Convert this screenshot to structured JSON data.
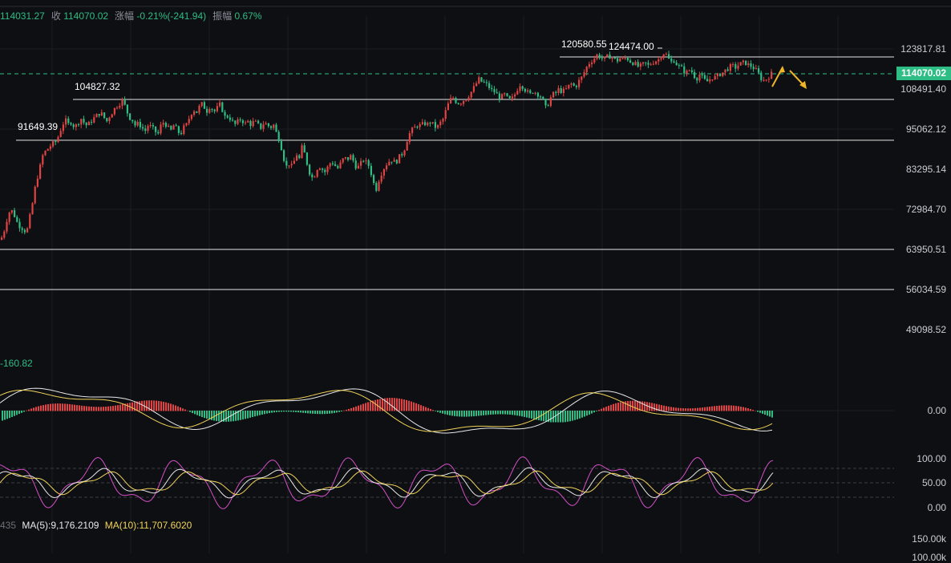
{
  "header": {
    "open_value": "114031.27",
    "close_label": "收",
    "close_value": "114070.02",
    "change_label": "涨幅",
    "change_value": "-0.21%(-241.94)",
    "amplitude_label": "振幅",
    "amplitude_value": "0.67%"
  },
  "price_axis": {
    "ticks": [
      "123817.81",
      "108491.40",
      "95062.12",
      "83295.14",
      "72984.70",
      "63950.51",
      "56034.59",
      "49098.52"
    ],
    "current_price": "114070.02"
  },
  "level_labels": {
    "l1": "120580.55",
    "l2": "124474.00",
    "l3": "104827.32",
    "l4": "91649.39"
  },
  "macd": {
    "label": "-160.82",
    "zero_tick": "0.00"
  },
  "kdj": {
    "ticks": [
      "100.00",
      "50.00",
      "0.00"
    ]
  },
  "volume": {
    "prefix": "435",
    "ma5_label": "MA(5):9,176.2109",
    "ma10_label": "MA(10):11,707.6020",
    "tick": "150.00k",
    "tick2": "100.00k"
  },
  "colors": {
    "up": "#e04343",
    "down": "#2ebd85",
    "macd_dif": "#e8e8e8",
    "macd_dea": "#f0d35a",
    "kdj_k": "#e8e8e8",
    "kdj_d": "#f0d35a",
    "kdj_j": "#d44fc9",
    "arrow": "#f0b429"
  },
  "chart_data": {
    "type": "candlestick",
    "price_ticks": [
      123817.81,
      108491.4,
      95062.12,
      83295.14,
      72984.7,
      63950.51,
      56034.59,
      49098.52
    ],
    "horizontal_levels": [
      120580.55,
      104827.32,
      91649.39,
      63950.51,
      56034.59
    ],
    "current_price": 114070.02,
    "close_path": [
      [
        0,
        66000
      ],
      [
        4,
        68000
      ],
      [
        8,
        71000
      ],
      [
        12,
        73000
      ],
      [
        16,
        72000
      ],
      [
        20,
        70000
      ],
      [
        24,
        69000
      ],
      [
        28,
        68500
      ],
      [
        32,
        67500
      ],
      [
        36,
        71000
      ],
      [
        40,
        75000
      ],
      [
        44,
        80000
      ],
      [
        48,
        83000
      ],
      [
        52,
        87000
      ],
      [
        56,
        88500
      ],
      [
        60,
        89500
      ],
      [
        64,
        90500
      ],
      [
        68,
        91000
      ],
      [
        72,
        93000
      ],
      [
        76,
        96000
      ],
      [
        80,
        98000
      ],
      [
        84,
        96500
      ],
      [
        88,
        97500
      ],
      [
        92,
        95500
      ],
      [
        96,
        97000
      ],
      [
        100,
        98500
      ],
      [
        104,
        97000
      ],
      [
        108,
        96000
      ],
      [
        112,
        97500
      ],
      [
        116,
        98500
      ],
      [
        120,
        99500
      ],
      [
        124,
        100500
      ],
      [
        128,
        99000
      ],
      [
        132,
        97500
      ],
      [
        136,
        99500
      ],
      [
        140,
        101000
      ],
      [
        144,
        102500
      ],
      [
        148,
        103500
      ],
      [
        152,
        104800
      ],
      [
        156,
        101500
      ],
      [
        160,
        99000
      ],
      [
        164,
        98000
      ],
      [
        168,
        96000
      ],
      [
        172,
        97000
      ],
      [
        176,
        95500
      ],
      [
        180,
        94500
      ],
      [
        184,
        96500
      ],
      [
        188,
        95500
      ],
      [
        192,
        94500
      ],
      [
        196,
        93500
      ],
      [
        200,
        96500
      ],
      [
        204,
        97500
      ],
      [
        208,
        95500
      ],
      [
        212,
        94500
      ],
      [
        216,
        96500
      ],
      [
        220,
        94500
      ],
      [
        224,
        93500
      ],
      [
        228,
        95500
      ],
      [
        232,
        96500
      ],
      [
        236,
        99500
      ],
      [
        240,
        101500
      ],
      [
        244,
        100500
      ],
      [
        248,
        102500
      ],
      [
        252,
        103500
      ],
      [
        256,
        100500
      ],
      [
        260,
        102500
      ],
      [
        264,
        101500
      ],
      [
        268,
        100500
      ],
      [
        272,
        103500
      ],
      [
        276,
        101500
      ],
      [
        280,
        98500
      ],
      [
        284,
        99500
      ],
      [
        288,
        97500
      ],
      [
        292,
        96500
      ],
      [
        296,
        97500
      ],
      [
        300,
        98500
      ],
      [
        304,
        96500
      ],
      [
        308,
        97500
      ],
      [
        312,
        96500
      ],
      [
        316,
        97500
      ],
      [
        320,
        96500
      ],
      [
        324,
        95500
      ],
      [
        328,
        97000
      ],
      [
        332,
        96500
      ],
      [
        336,
        95500
      ],
      [
        340,
        96500
      ],
      [
        344,
        93500
      ],
      [
        348,
        91500
      ],
      [
        352,
        87000
      ],
      [
        356,
        84000
      ],
      [
        360,
        85000
      ],
      [
        364,
        83500
      ],
      [
        368,
        88000
      ],
      [
        372,
        86000
      ],
      [
        376,
        90000
      ],
      [
        380,
        86500
      ],
      [
        384,
        83000
      ],
      [
        388,
        81000
      ],
      [
        392,
        82000
      ],
      [
        396,
        84500
      ],
      [
        400,
        83500
      ],
      [
        404,
        82500
      ],
      [
        408,
        84000
      ],
      [
        412,
        85500
      ],
      [
        416,
        84500
      ],
      [
        420,
        83500
      ],
      [
        424,
        85000
      ],
      [
        428,
        86500
      ],
      [
        432,
        86000
      ],
      [
        436,
        87000
      ],
      [
        440,
        85500
      ],
      [
        444,
        83500
      ],
      [
        448,
        84500
      ],
      [
        452,
        86000
      ],
      [
        456,
        85000
      ],
      [
        460,
        84000
      ],
      [
        464,
        80000
      ],
      [
        468,
        78000
      ],
      [
        472,
        81000
      ],
      [
        476,
        83000
      ],
      [
        480,
        84500
      ],
      [
        484,
        85500
      ],
      [
        488,
        86000
      ],
      [
        492,
        85000
      ],
      [
        496,
        86500
      ],
      [
        500,
        87500
      ],
      [
        504,
        89500
      ],
      [
        508,
        93000
      ],
      [
        512,
        94500
      ],
      [
        516,
        95500
      ],
      [
        520,
        96500
      ],
      [
        524,
        96000
      ],
      [
        528,
        97000
      ],
      [
        532,
        96500
      ],
      [
        536,
        97500
      ],
      [
        540,
        96000
      ],
      [
        544,
        95500
      ],
      [
        548,
        97000
      ],
      [
        552,
        98500
      ],
      [
        556,
        102000
      ],
      [
        560,
        104500
      ],
      [
        564,
        105500
      ],
      [
        568,
        104000
      ],
      [
        572,
        103500
      ],
      [
        576,
        104500
      ],
      [
        580,
        105000
      ],
      [
        584,
        106500
      ],
      [
        588,
        108000
      ],
      [
        592,
        110000
      ],
      [
        596,
        112000
      ],
      [
        600,
        111000
      ],
      [
        604,
        110500
      ],
      [
        608,
        109500
      ],
      [
        612,
        108000
      ],
      [
        616,
        107500
      ],
      [
        620,
        106000
      ],
      [
        624,
        105500
      ],
      [
        628,
        106500
      ],
      [
        632,
        105000
      ],
      [
        636,
        104500
      ],
      [
        640,
        106000
      ],
      [
        644,
        108500
      ],
      [
        648,
        110500
      ],
      [
        652,
        109000
      ],
      [
        656,
        107500
      ],
      [
        660,
        106500
      ],
      [
        664,
        108000
      ],
      [
        668,
        107000
      ],
      [
        672,
        106500
      ],
      [
        676,
        104500
      ],
      [
        680,
        101500
      ],
      [
        684,
        104500
      ],
      [
        688,
        106500
      ],
      [
        692,
        107000
      ],
      [
        696,
        108500
      ],
      [
        700,
        107500
      ],
      [
        704,
        108000
      ],
      [
        708,
        109500
      ],
      [
        712,
        110500
      ],
      [
        716,
        109000
      ],
      [
        720,
        111000
      ],
      [
        724,
        112500
      ],
      [
        728,
        115000
      ],
      [
        732,
        117500
      ],
      [
        736,
        119000
      ],
      [
        740,
        120000
      ],
      [
        744,
        121500
      ],
      [
        748,
        120500
      ],
      [
        752,
        119500
      ],
      [
        756,
        120500
      ],
      [
        760,
        121000
      ],
      [
        764,
        120000
      ],
      [
        768,
        119000
      ],
      [
        772,
        120000
      ],
      [
        776,
        119500
      ],
      [
        780,
        120500
      ],
      [
        784,
        119000
      ],
      [
        788,
        118500
      ],
      [
        792,
        117500
      ],
      [
        796,
        116500
      ],
      [
        800,
        117500
      ],
      [
        804,
        118000
      ],
      [
        808,
        117000
      ],
      [
        812,
        118500
      ],
      [
        816,
        119000
      ],
      [
        820,
        119500
      ],
      [
        824,
        121500
      ],
      [
        828,
        122500
      ],
      [
        832,
        120000
      ],
      [
        836,
        118500
      ],
      [
        840,
        119500
      ],
      [
        844,
        117000
      ],
      [
        848,
        116500
      ],
      [
        852,
        115000
      ],
      [
        856,
        114500
      ],
      [
        860,
        116000
      ],
      [
        864,
        113500
      ],
      [
        868,
        112500
      ],
      [
        872,
        114000
      ],
      [
        876,
        112000
      ],
      [
        880,
        111000
      ],
      [
        884,
        112000
      ],
      [
        888,
        113000
      ],
      [
        892,
        112500
      ],
      [
        896,
        114000
      ],
      [
        900,
        114500
      ],
      [
        904,
        115500
      ],
      [
        908,
        116500
      ],
      [
        912,
        117000
      ],
      [
        916,
        116500
      ],
      [
        920,
        117500
      ],
      [
        924,
        118000
      ],
      [
        928,
        118500
      ],
      [
        932,
        117500
      ],
      [
        936,
        117000
      ],
      [
        940,
        116000
      ],
      [
        944,
        114500
      ],
      [
        948,
        112500
      ],
      [
        952,
        111500
      ],
      [
        956,
        112500
      ],
      [
        960,
        114000
      ],
      [
        964,
        114070
      ]
    ]
  }
}
